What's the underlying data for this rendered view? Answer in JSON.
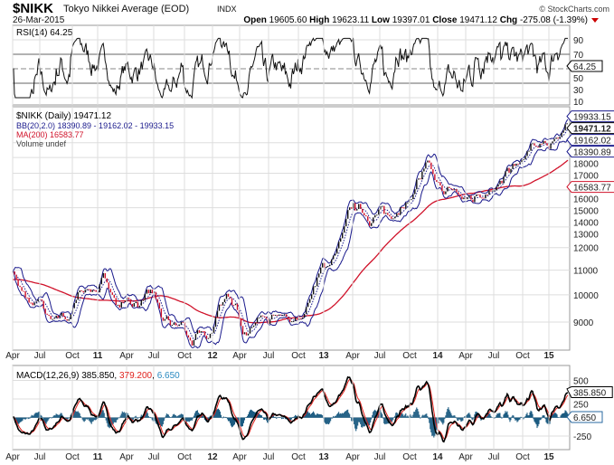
{
  "header": {
    "symbol": "$NIKK",
    "name": "Tokyo Nikkei Average (EOD)",
    "exchange": "INDX",
    "date": "26-Mar-2015",
    "credit": "© StockCharts.com",
    "open_label": "Open",
    "open": "19605.60",
    "high_label": "High",
    "high": "19623.11",
    "low_label": "Low",
    "low": "19397.01",
    "close_label": "Close",
    "close": "19471.12",
    "chg_label": "Chg",
    "chg": "-275.08 (-1.39%)"
  },
  "colors": {
    "price": "#000000",
    "bb": "#1a1a8c",
    "ma": "#d0122a",
    "macd_signal": "#e0201a",
    "macd_hist": "#1a5a80",
    "grid": "#dddddd"
  },
  "chart_data": {
    "type": "line",
    "x_ticks": [
      "Apr",
      "Jul",
      "Oct",
      "11",
      "Apr",
      "Jul",
      "Oct",
      "12",
      "Apr",
      "Jul",
      "Oct",
      "13",
      "Apr",
      "Jul",
      "Oct",
      "14",
      "Apr",
      "Jul",
      "Oct",
      "15"
    ],
    "months": [
      "2010-04",
      "2010-05",
      "2010-06",
      "2010-07",
      "2010-08",
      "2010-09",
      "2010-10",
      "2010-11",
      "2010-12",
      "2011-01",
      "2011-02",
      "2011-03",
      "2011-04",
      "2011-05",
      "2011-06",
      "2011-07",
      "2011-08",
      "2011-09",
      "2011-10",
      "2011-11",
      "2011-12",
      "2012-01",
      "2012-02",
      "2012-03",
      "2012-04",
      "2012-05",
      "2012-06",
      "2012-07",
      "2012-08",
      "2012-09",
      "2012-10",
      "2012-11",
      "2012-12",
      "2013-01",
      "2013-02",
      "2013-03",
      "2013-04",
      "2013-05",
      "2013-06",
      "2013-07",
      "2013-08",
      "2013-09",
      "2013-10",
      "2013-11",
      "2013-12",
      "2014-01",
      "2014-02",
      "2014-03",
      "2014-04",
      "2014-05",
      "2014-06",
      "2014-07",
      "2014-08",
      "2014-09",
      "2014-10",
      "2014-11",
      "2014-12",
      "2015-01",
      "2015-02",
      "2015-03"
    ],
    "close_approx": [
      11100,
      10000,
      9500,
      9500,
      9000,
      9300,
      9200,
      9900,
      10200,
      10300,
      10600,
      9700,
      9800,
      9700,
      9800,
      9900,
      8900,
      8700,
      8900,
      8400,
      8450,
      8800,
      9700,
      10100,
      9500,
      8500,
      9000,
      8700,
      9000,
      8900,
      8900,
      9400,
      10400,
      11100,
      11500,
      12400,
      13800,
      13800,
      13700,
      13700,
      13400,
      14400,
      14300,
      15600,
      16300,
      14900,
      14800,
      14800,
      14300,
      14600,
      15100,
      15600,
      15400,
      16200,
      16400,
      17400,
      17450,
      17700,
      18800,
      19471
    ],
    "rsi": {
      "label": "RSI(14) 64.25",
      "value": "64.25",
      "ticks": [
        "90",
        "70",
        "50",
        "30",
        "10"
      ]
    },
    "price_panel": {
      "label": "$NIKK (Daily) 19471.12",
      "bb_label": "BB(20,2.0) 18390.89 - 19162.02 - 19933.15",
      "ma_label": "MA(200) 16583.77",
      "volume_label": "Volume undef",
      "ticks": [
        "18000",
        "17000",
        "16000",
        "15000",
        "14000",
        "13000",
        "12000",
        "11000",
        "10000",
        "9000"
      ],
      "tick_values": [
        18000,
        17000,
        16000,
        15000,
        14000,
        13000,
        12000,
        11000,
        10000,
        9000
      ],
      "bb_upper": "19933.15",
      "bb_mid": "19162.02",
      "bb_lower": "18390.89",
      "last": "19471.12",
      "ma": "16583.77"
    },
    "macd": {
      "label_main": "MACD(12,26,9) 385.850",
      "sep1": ", ",
      "label_signal": "379.200",
      "sep2": ", ",
      "label_hist": "6.650",
      "macd": "385.850",
      "hist": "6.650",
      "ticks": [
        "500",
        "250",
        "-250"
      ],
      "tick_values": [
        500,
        250,
        -250
      ]
    }
  }
}
